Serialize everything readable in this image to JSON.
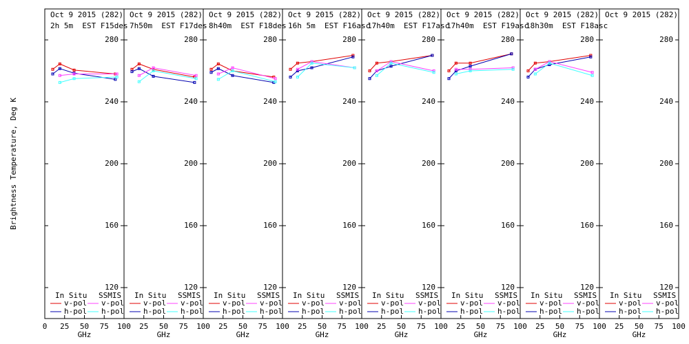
{
  "chart_data": [
    {
      "type": "line",
      "title": "Oct 9 2015 (282)",
      "subtitle": "2h 5m  EST F15des",
      "xlabel": "GHz",
      "ylabel": "Brightness Temperature, Deg K",
      "xlim": [
        0,
        100
      ],
      "xticks": [
        0,
        25,
        50,
        75,
        100
      ],
      "ylim": [
        100,
        300
      ],
      "yticks": [
        120,
        160,
        200,
        240,
        280
      ],
      "series_groups": [
        {
          "name": "In Situ",
          "series": [
            {
              "name": "v-pol",
              "color": "#e00000",
              "x": [
                10,
                19,
                37,
                89
              ],
              "values": [
                261,
                264.5,
                260.5,
                258
              ]
            },
            {
              "name": "h-pol",
              "color": "#0000b0",
              "x": [
                10,
                19,
                37,
                89
              ],
              "values": [
                258,
                261.5,
                258.5,
                254.5
              ]
            }
          ]
        },
        {
          "name": "SSMIS",
          "series": [
            {
              "name": "v-pol",
              "color": "#ff40ff",
              "x": [
                19,
                37,
                91
              ],
              "values": [
                257,
                258,
                258
              ]
            },
            {
              "name": "h-pol",
              "color": "#40ffff",
              "x": [
                19,
                37,
                91
              ],
              "values": [
                252.5,
                255,
                256
              ]
            }
          ]
        }
      ]
    },
    {
      "type": "line",
      "title": "Oct 9 2015 (282)",
      "subtitle": "7h50m  EST F17des",
      "xlabel": "GHz",
      "xlim": [
        0,
        100
      ],
      "xticks": [
        25,
        50,
        75,
        100
      ],
      "ylim": [
        100,
        300
      ],
      "yticks": [
        120,
        160,
        200,
        240,
        280
      ],
      "series_groups": [
        {
          "name": "In Situ",
          "series": [
            {
              "name": "v-pol",
              "color": "#e00000",
              "x": [
                10,
                19,
                37,
                89
              ],
              "values": [
                261,
                264.5,
                261,
                256
              ]
            },
            {
              "name": "h-pol",
              "color": "#0000b0",
              "x": [
                10,
                19,
                37,
                89
              ],
              "values": [
                259.5,
                261.5,
                256.5,
                252.5
              ]
            }
          ]
        },
        {
          "name": "SSMIS",
          "series": [
            {
              "name": "v-pol",
              "color": "#ff40ff",
              "x": [
                19,
                37,
                91
              ],
              "values": [
                257,
                262,
                257
              ]
            },
            {
              "name": "h-pol",
              "color": "#40ffff",
              "x": [
                19,
                37,
                91
              ],
              "values": [
                253,
                260,
                255
              ]
            }
          ]
        }
      ]
    },
    {
      "type": "line",
      "title": "Oct 9 2015 (282)",
      "subtitle": "8h40m  EST F18des",
      "xlabel": "GHz",
      "xlim": [
        0,
        100
      ],
      "xticks": [
        25,
        50,
        75,
        100
      ],
      "ylim": [
        100,
        300
      ],
      "yticks": [
        120,
        160,
        200,
        240,
        280
      ],
      "series_groups": [
        {
          "name": "In Situ",
          "series": [
            {
              "name": "v-pol",
              "color": "#e00000",
              "x": [
                10,
                19,
                37,
                89
              ],
              "values": [
                261,
                264.5,
                260,
                256
              ]
            },
            {
              "name": "h-pol",
              "color": "#0000b0",
              "x": [
                10,
                19,
                37,
                89
              ],
              "values": [
                259,
                261.5,
                257,
                252.5
              ]
            }
          ]
        },
        {
          "name": "SSMIS",
          "series": [
            {
              "name": "v-pol",
              "color": "#ff40ff",
              "x": [
                19,
                37,
                91
              ],
              "values": [
                258,
                262,
                255
              ]
            },
            {
              "name": "h-pol",
              "color": "#40ffff",
              "x": [
                19,
                37,
                91
              ],
              "values": [
                254.5,
                260,
                253
              ]
            }
          ]
        }
      ]
    },
    {
      "type": "line",
      "title": "Oct 9 2015 (282)",
      "subtitle": "16h 5m  EST F16asc",
      "xlabel": "GHz",
      "xlim": [
        0,
        100
      ],
      "xticks": [
        25,
        50,
        75,
        100
      ],
      "ylim": [
        100,
        300
      ],
      "yticks": [
        120,
        160,
        200,
        240,
        280
      ],
      "series_groups": [
        {
          "name": "In Situ",
          "series": [
            {
              "name": "v-pol",
              "color": "#e00000",
              "x": [
                10,
                19,
                37,
                89
              ],
              "values": [
                261,
                265,
                266,
                270
              ]
            },
            {
              "name": "h-pol",
              "color": "#0000b0",
              "x": [
                10,
                19,
                37,
                89
              ],
              "values": [
                256,
                260,
                262,
                269
              ]
            }
          ]
        },
        {
          "name": "SSMIS",
          "series": [
            {
              "name": "v-pol",
              "color": "#ff40ff",
              "x": [
                19,
                37,
                91
              ],
              "values": [
                261,
                266,
                262
              ]
            },
            {
              "name": "h-pol",
              "color": "#40ffff",
              "x": [
                19,
                37,
                91
              ],
              "values": [
                256,
                265,
                262
              ]
            }
          ]
        }
      ]
    },
    {
      "type": "line",
      "title": "Oct 9 2015 (282)",
      "subtitle": "17h40m  EST F17asc",
      "xlabel": "GHz",
      "xlim": [
        0,
        100
      ],
      "xticks": [
        25,
        50,
        75,
        100
      ],
      "ylim": [
        100,
        300
      ],
      "yticks": [
        120,
        160,
        200,
        240,
        280
      ],
      "series_groups": [
        {
          "name": "In Situ",
          "series": [
            {
              "name": "v-pol",
              "color": "#e00000",
              "x": [
                10,
                19,
                37,
                89
              ],
              "values": [
                260,
                265,
                266,
                270
              ]
            },
            {
              "name": "h-pol",
              "color": "#0000b0",
              "x": [
                10,
                19,
                37,
                89
              ],
              "values": [
                255,
                260,
                263,
                270
              ]
            }
          ]
        },
        {
          "name": "SSMIS",
          "series": [
            {
              "name": "v-pol",
              "color": "#ff40ff",
              "x": [
                19,
                37,
                91
              ],
              "values": [
                260,
                266,
                260
              ]
            },
            {
              "name": "h-pol",
              "color": "#40ffff",
              "x": [
                19,
                37,
                91
              ],
              "values": [
                257,
                265,
                259
              ]
            }
          ]
        }
      ]
    },
    {
      "type": "line",
      "title": "Oct 9 2015 (282)",
      "subtitle": "17h40m  EST F19asc",
      "xlabel": "GHz",
      "xlim": [
        0,
        100
      ],
      "xticks": [
        25,
        50,
        75,
        100
      ],
      "ylim": [
        100,
        300
      ],
      "yticks": [
        120,
        160,
        200,
        240,
        280
      ],
      "series_groups": [
        {
          "name": "In Situ",
          "series": [
            {
              "name": "v-pol",
              "color": "#e00000",
              "x": [
                10,
                19,
                37,
                89
              ],
              "values": [
                260,
                265,
                265,
                271
              ]
            },
            {
              "name": "h-pol",
              "color": "#0000b0",
              "x": [
                10,
                19,
                37,
                89
              ],
              "values": [
                255,
                260,
                263,
                271
              ]
            }
          ]
        },
        {
          "name": "SSMIS",
          "series": [
            {
              "name": "v-pol",
              "color": "#ff40ff",
              "x": [
                19,
                37,
                91
              ],
              "values": [
                261,
                261,
                262
              ]
            },
            {
              "name": "h-pol",
              "color": "#40ffff",
              "x": [
                19,
                37,
                91
              ],
              "values": [
                258,
                260,
                261
              ]
            }
          ]
        }
      ]
    },
    {
      "type": "line",
      "title": "Oct 9 2015 (282)",
      "subtitle": "18h30m  EST F18asc",
      "xlabel": "GHz",
      "xlim": [
        0,
        100
      ],
      "xticks": [
        25,
        50,
        75,
        100
      ],
      "ylim": [
        100,
        300
      ],
      "yticks": [
        120,
        160,
        200,
        240,
        280
      ],
      "series_groups": [
        {
          "name": "In Situ",
          "series": [
            {
              "name": "v-pol",
              "color": "#e00000",
              "x": [
                10,
                19,
                37,
                89
              ],
              "values": [
                260,
                265,
                266,
                270
              ]
            },
            {
              "name": "h-pol",
              "color": "#0000b0",
              "x": [
                10,
                19,
                37,
                89
              ],
              "values": [
                256,
                261,
                264,
                269
              ]
            }
          ]
        },
        {
          "name": "SSMIS",
          "series": [
            {
              "name": "v-pol",
              "color": "#ff40ff",
              "x": [
                19,
                37,
                91
              ],
              "values": [
                261,
                266,
                259
              ]
            },
            {
              "name": "h-pol",
              "color": "#40ffff",
              "x": [
                19,
                37,
                91
              ],
              "values": [
                258,
                265,
                257
              ]
            }
          ]
        }
      ]
    },
    {
      "type": "line",
      "title": "Oct 9 2015 (282)",
      "xlabel": "GHz",
      "xlim": [
        0,
        100
      ],
      "xticks": [
        25,
        50,
        75,
        100
      ],
      "ylim": [
        100,
        300
      ],
      "yticks": [
        120,
        160,
        200,
        240,
        280
      ],
      "series_groups": [
        {
          "name": "In Situ",
          "series": [
            {
              "name": "v-pol",
              "color": "#e00000",
              "x": [],
              "values": []
            },
            {
              "name": "h-pol",
              "color": "#0000b0",
              "x": [],
              "values": []
            }
          ]
        },
        {
          "name": "SSMIS",
          "series": [
            {
              "name": "v-pol",
              "color": "#ff40ff",
              "x": [],
              "values": []
            },
            {
              "name": "h-pol",
              "color": "#40ffff",
              "x": [],
              "values": []
            }
          ]
        }
      ]
    }
  ]
}
